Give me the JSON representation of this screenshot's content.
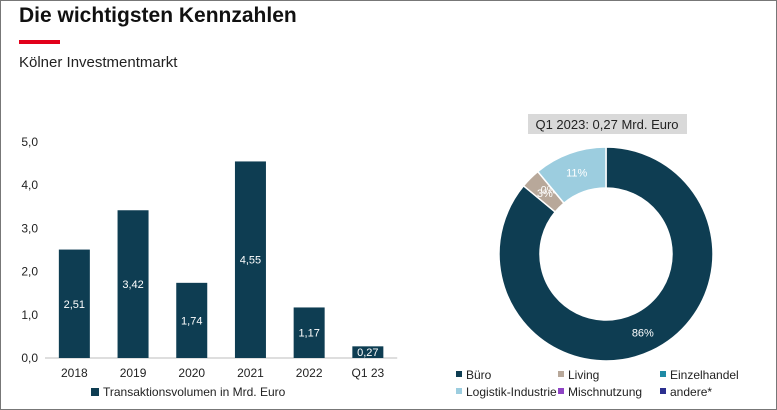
{
  "header": {
    "title": "Die wichtigsten Kennzahlen",
    "subtitle": "Kölner Investmentmarkt",
    "accent_color": "#e2001a"
  },
  "chart_data": [
    {
      "type": "bar",
      "categories": [
        "2018",
        "2019",
        "2020",
        "2021",
        "2022",
        "Q1 23"
      ],
      "values": [
        2.51,
        3.42,
        1.74,
        4.55,
        1.17,
        0.27
      ],
      "value_labels": [
        "2,51",
        "3,42",
        "1,74",
        "4,55",
        "1,17",
        "0,27"
      ],
      "yticks": [
        "0,0",
        "1,0",
        "2,0",
        "3,0",
        "4,0",
        "5,0"
      ],
      "ylim": [
        0,
        5
      ],
      "grid": false,
      "legend": "Transaktionsvolumen in Mrd. Euro",
      "legend_position": "bottom",
      "color": "#0e3d52"
    },
    {
      "type": "pie",
      "title": "Q1 2023: 0,27 Mrd. Euro",
      "donut": true,
      "legend_position": "bottom",
      "slices": [
        {
          "label": "Büro",
          "value": 86,
          "display": "86%",
          "color": "#0e3d52"
        },
        {
          "label": "Living",
          "value": 3,
          "display": "3%",
          "color": "#b8a89a"
        },
        {
          "label": "Einzelhandel",
          "value": 0,
          "display": "0%",
          "color": "#1f8aa5"
        },
        {
          "label": "Logistik-Industrie",
          "value": 11,
          "display": "11%",
          "color": "#9ccddf"
        },
        {
          "label": "Mischnutzung",
          "value": 0,
          "display": "0%",
          "color": "#8e44c4"
        },
        {
          "label": "andere*",
          "value": 0,
          "display": "0%",
          "color": "#2b2f8f"
        }
      ]
    }
  ]
}
